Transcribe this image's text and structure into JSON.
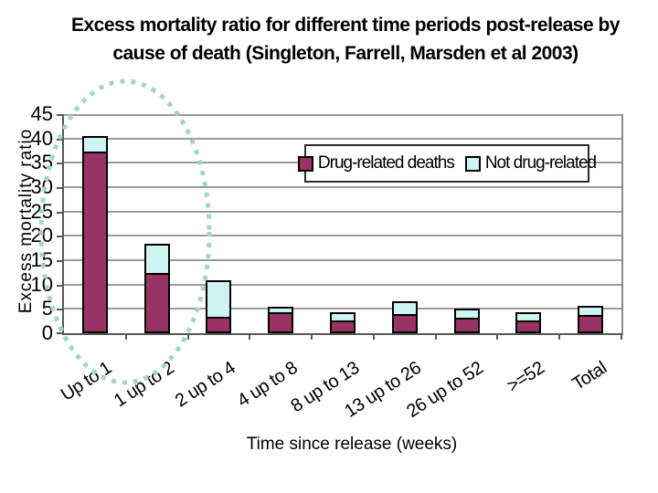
{
  "slide": {
    "title_line1": "Excess mortality ratio for different time periods post-release by",
    "title_line2": "cause of death (Singleton, Farrell, Marsden et al 2003)"
  },
  "chart_data": {
    "type": "bar",
    "stacked": true,
    "title": "Excess mortality ratio for different time periods post-release by cause of death (Singleton, Farrell, Marsden et al 2003)",
    "categories": [
      "Up to 1",
      "1 up to 2",
      "2 up to 4",
      "4 up to 8",
      "8 up to 13",
      "13 up to 26",
      "26 up to 52",
      ">=52",
      "Total"
    ],
    "series": [
      {
        "name": "Drug-related deaths",
        "color": "#993366",
        "values": [
          37,
          12,
          3,
          4,
          2.2,
          3.5,
          2.8,
          2.3,
          3.4
        ]
      },
      {
        "name": "Not drug-related",
        "color": "#cdf4f2",
        "values": [
          3.5,
          6.3,
          7.8,
          1.4,
          2.1,
          3.0,
          2.2,
          2.0,
          2.2
        ]
      }
    ],
    "xlabel": "Time since release (weeks)",
    "ylabel": "Excess mortality ratio",
    "ylim": [
      0,
      45
    ],
    "yticks": [
      0,
      5,
      10,
      15,
      20,
      25,
      30,
      35,
      40,
      45
    ],
    "grid": "horizontal gridlines every 5 units",
    "legend_position": "inside plot, upper right, horizontal",
    "annotation": {
      "shape": "dashed-ellipse",
      "highlights": "first two bars (Up to 1 and 1 up to 2)",
      "color": "#a6d3cf"
    },
    "axis_color": "#585858",
    "gridline_color": "#9b9b9b"
  }
}
